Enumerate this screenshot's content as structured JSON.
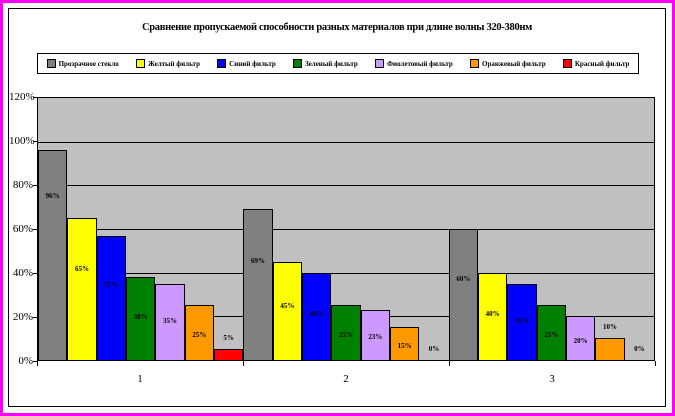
{
  "page": {
    "outer_border_color": "#FF00FF",
    "background": "#FFFFFF",
    "plot_background": "#C0C0C0"
  },
  "chart_data": {
    "type": "bar",
    "title": "Сравнение пропускаемой способности разных материалов при длине волны 320-380нм",
    "categories": [
      "1",
      "2",
      "3"
    ],
    "series": [
      {
        "name": "Прозрачное стекло",
        "color": "#808080",
        "values": [
          96,
          69,
          60
        ]
      },
      {
        "name": "Желтый фильтр",
        "color": "#FFFF00",
        "values": [
          65,
          45,
          40
        ]
      },
      {
        "name": "Синий фильтр",
        "color": "#0000FF",
        "values": [
          57,
          40,
          35
        ]
      },
      {
        "name": "Зеленый фильтр",
        "color": "#008000",
        "values": [
          38,
          25,
          25
        ]
      },
      {
        "name": "Фиолетовый фильтр",
        "color": "#CC99FF",
        "values": [
          35,
          23,
          20
        ]
      },
      {
        "name": "Оранжевый фильтр",
        "color": "#FF9900",
        "values": [
          25,
          15,
          10
        ]
      },
      {
        "name": "Красный фильтр",
        "color": "#FF0000",
        "values": [
          5,
          0,
          0
        ]
      }
    ],
    "data_labels": true,
    "data_label_suffix": "%",
    "xlabel": "",
    "ylabel": "",
    "ylim": [
      0,
      120
    ],
    "ytick_step": 20,
    "ytick_labels": [
      "120%",
      "100%",
      "80%",
      "60%",
      "40%",
      "20%",
      "0%"
    ],
    "grid": true,
    "legend_position": "top"
  }
}
